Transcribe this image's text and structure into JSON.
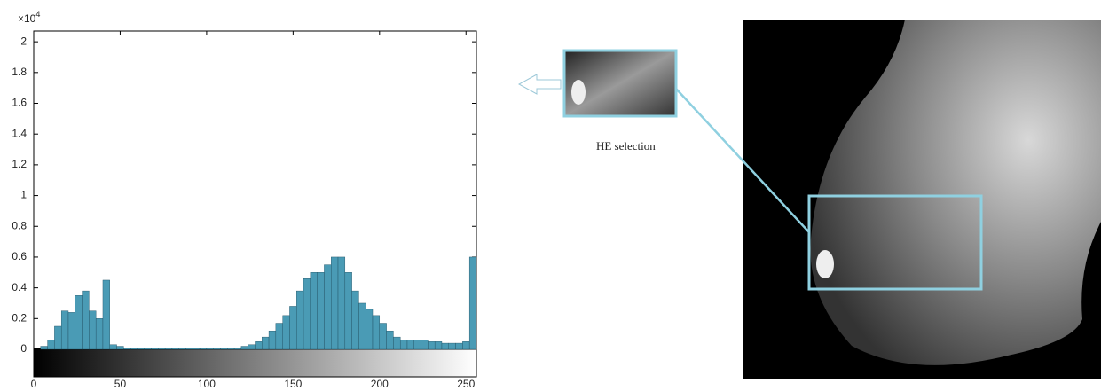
{
  "chart_data": {
    "type": "histogram",
    "y_multiplier": "×10",
    "y_multiplier_exponent": "4",
    "annotation": "HE selection",
    "color": "#4a9bb5",
    "bins": [
      0,
      4,
      8,
      12,
      16,
      20,
      24,
      28,
      32,
      36,
      40,
      44,
      48,
      52,
      56,
      60,
      64,
      68,
      72,
      76,
      80,
      84,
      88,
      92,
      96,
      100,
      104,
      108,
      112,
      116,
      120,
      124,
      128,
      132,
      136,
      140,
      144,
      148,
      152,
      156,
      160,
      164,
      168,
      172,
      176,
      180,
      184,
      188,
      192,
      196,
      200,
      204,
      208,
      212,
      216,
      220,
      224,
      228,
      232,
      236,
      240,
      244,
      248,
      252,
      256
    ],
    "values": [
      0,
      0.02,
      0.06,
      0.15,
      0.25,
      0.24,
      0.35,
      0.38,
      0.25,
      0.2,
      0.45,
      0.03,
      0.02,
      0.01,
      0.01,
      0.01,
      0.01,
      0.01,
      0.01,
      0.01,
      0.01,
      0.01,
      0.01,
      0.01,
      0.01,
      0.01,
      0.01,
      0.01,
      0.01,
      0.01,
      0.02,
      0.03,
      0.05,
      0.08,
      0.12,
      0.17,
      0.22,
      0.28,
      0.38,
      0.46,
      0.5,
      0.5,
      0.55,
      0.6,
      0.6,
      0.5,
      0.38,
      0.3,
      0.26,
      0.22,
      0.17,
      0.12,
      0.08,
      0.06,
      0.06,
      0.06,
      0.06,
      0.05,
      0.05,
      0.04,
      0.04,
      0.04,
      0.05,
      0.6
    ],
    "xlim": [
      0,
      255
    ],
    "xticks": [
      0,
      50,
      100,
      150,
      200,
      250
    ],
    "ylim": [
      0,
      2.07
    ],
    "yticks": [
      0,
      0.2,
      0.4,
      0.6,
      0.8,
      1,
      1.2,
      1.4,
      1.6,
      1.8,
      2
    ]
  }
}
